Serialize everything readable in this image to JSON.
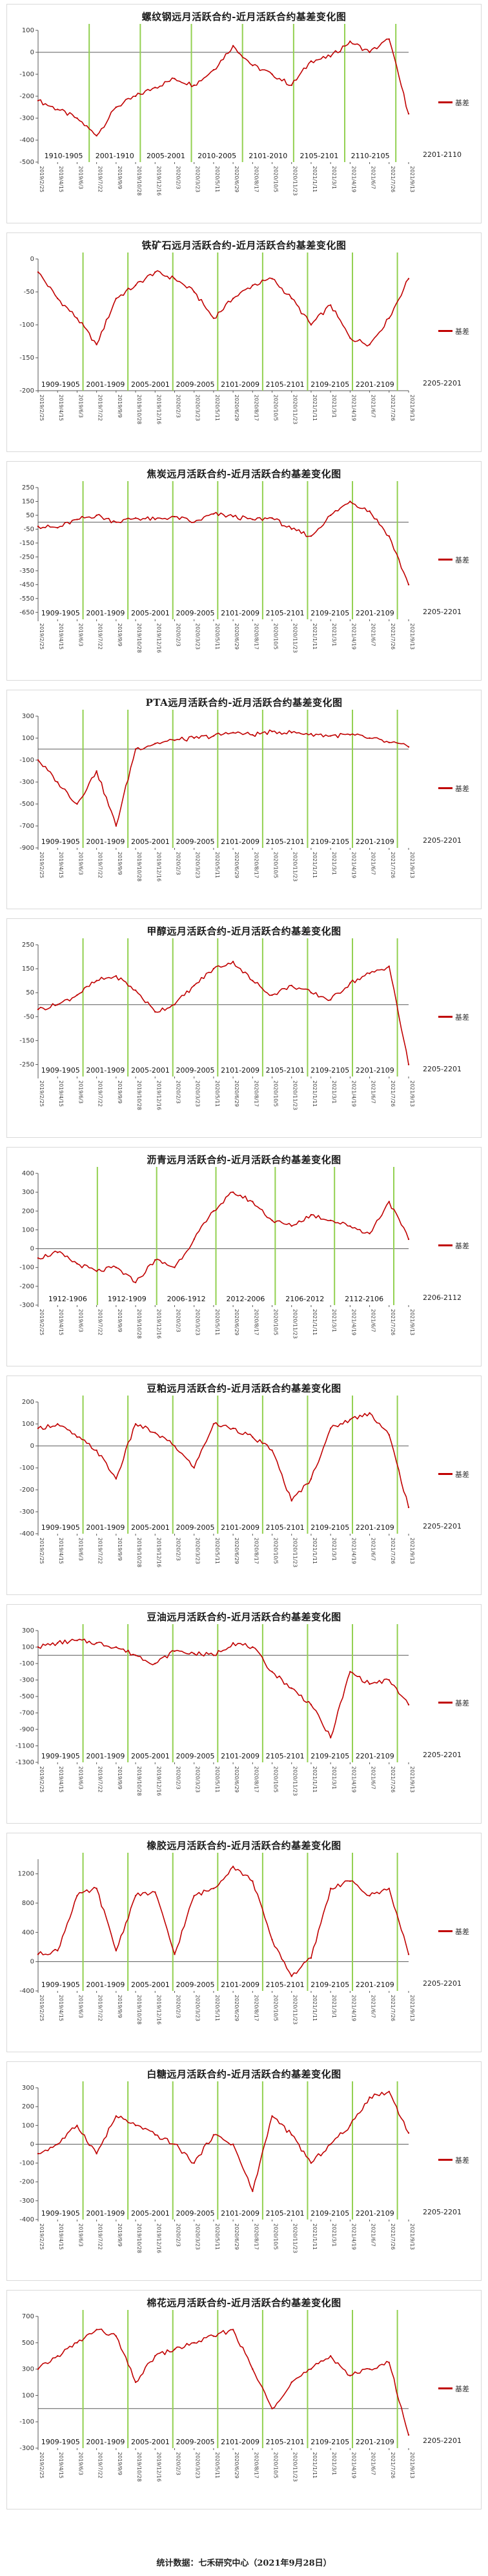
{
  "footer": "统计数据：七禾研究中心（2021年9月28日）",
  "colors": {
    "series": "#c00000",
    "marker": "#92d050",
    "axis": "#595959"
  },
  "chart_data": [
    {
      "type": "line",
      "title": "螺纹钢远月活跃合约-近月活跃合约基差变化图",
      "legend": "基差",
      "ylim": [
        -500,
        100
      ],
      "yticks": [
        100,
        0,
        -100,
        -200,
        -300,
        -400,
        -500
      ],
      "segments": [
        "1910-1905",
        "2001-1910",
        "2005-2001",
        "2010-2005",
        "2101-2010",
        "2105-2101",
        "2110-2105"
      ],
      "extra_label": "2201-2110",
      "x": [
        "2019/2/25",
        "2019/4/15",
        "2019/6/3",
        "2019/7/22",
        "2019/9/9",
        "2019/10/28",
        "2019/12/16",
        "2020/2/3",
        "2020/3/23",
        "2020/5/11",
        "2020/6/29",
        "2020/8/17",
        "2020/10/5",
        "2020/11/23",
        "2021/1/11",
        "2021/3/1",
        "2021/4/19",
        "2021/6/7",
        "2021/7/26",
        "2021/9/13"
      ],
      "values": [
        -220,
        -260,
        -300,
        -380,
        -250,
        -200,
        -160,
        -120,
        -150,
        -80,
        30,
        -60,
        -100,
        -150,
        -40,
        -20,
        50,
        0,
        60,
        -280
      ]
    },
    {
      "type": "line",
      "title": "铁矿石远月活跃合约-近月活跃合约基差变化图",
      "legend": "基差",
      "ylim": [
        -200,
        0
      ],
      "yticks": [
        0,
        -50,
        -100,
        -150,
        -200
      ],
      "segments": [
        "1909-1905",
        "2001-1909",
        "2005-2001",
        "2009-2005",
        "2101-2009",
        "2105-2101",
        "2109-2105",
        "2201-2109"
      ],
      "extra_label": "2205-2201",
      "x": [
        "2019/2/25",
        "2019/4/15",
        "2019/6/3",
        "2019/7/22",
        "2019/9/9",
        "2019/10/28",
        "2019/12/16",
        "2020/2/3",
        "2020/3/23",
        "2020/5/11",
        "2020/6/29",
        "2020/8/17",
        "2020/10/5",
        "2020/11/23",
        "2021/1/11",
        "2021/3/1",
        "2021/4/19",
        "2021/6/7",
        "2021/7/26",
        "2021/9/13"
      ],
      "values": [
        -20,
        -60,
        -90,
        -130,
        -60,
        -40,
        -20,
        -30,
        -50,
        -90,
        -60,
        -40,
        -30,
        -60,
        -100,
        -70,
        -120,
        -130,
        -90,
        -30
      ]
    },
    {
      "type": "line",
      "title": "焦炭远月活跃合约-近月活跃合约基差变化图",
      "legend": "基差",
      "ylim": [
        -700,
        250
      ],
      "yticks": [
        250,
        150,
        50,
        -50,
        -150,
        -250,
        -350,
        -450,
        -550,
        -650
      ],
      "segments": [
        "1909-1905",
        "2001-1909",
        "2005-2001",
        "2009-2005",
        "2101-2009",
        "2105-2101",
        "2109-2105",
        "2201-2109"
      ],
      "extra_label": "2205-2201",
      "x": [
        "2019/2/25",
        "2019/4/15",
        "2019/6/3",
        "2019/7/22",
        "2019/9/9",
        "2019/10/28",
        "2019/12/16",
        "2020/2/3",
        "2020/3/23",
        "2020/5/11",
        "2020/6/29",
        "2020/8/17",
        "2020/10/5",
        "2020/11/23",
        "2021/1/11",
        "2021/3/1",
        "2021/4/19",
        "2021/6/7",
        "2021/7/26",
        "2021/9/13"
      ],
      "values": [
        -30,
        -40,
        20,
        50,
        0,
        30,
        20,
        40,
        0,
        60,
        40,
        20,
        30,
        -50,
        -100,
        50,
        150,
        80,
        -100,
        -450
      ]
    },
    {
      "type": "line",
      "title": "PTA远月活跃合约-近月活跃合约基差变化图",
      "legend": "基差",
      "ylim": [
        -900,
        300
      ],
      "yticks": [
        300,
        100,
        -100,
        -300,
        -500,
        -700,
        -900
      ],
      "segments": [
        "1909-1905",
        "2001-1909",
        "2005-2001",
        "2009-2005",
        "2101-2009",
        "2105-2101",
        "2109-2105",
        "2201-2109"
      ],
      "extra_label": "2205-2201",
      "x": [
        "2019/2/25",
        "2019/4/15",
        "2019/6/3",
        "2019/7/22",
        "2019/9/9",
        "2019/10/28",
        "2019/12/16",
        "2020/2/3",
        "2020/3/23",
        "2020/5/11",
        "2020/6/29",
        "2020/8/17",
        "2020/10/5",
        "2020/11/23",
        "2021/1/11",
        "2021/3/1",
        "2021/4/19",
        "2021/6/7",
        "2021/7/26",
        "2021/9/13"
      ],
      "values": [
        -100,
        -300,
        -500,
        -200,
        -700,
        0,
        50,
        80,
        100,
        120,
        150,
        130,
        160,
        150,
        140,
        120,
        130,
        100,
        60,
        20
      ]
    },
    {
      "type": "line",
      "title": "甲醇远月活跃合约-近月活跃合约基差变化图",
      "legend": "基差",
      "ylim": [
        -300,
        250
      ],
      "yticks": [
        250,
        150,
        50,
        -50,
        -150,
        -250
      ],
      "segments": [
        "1909-1905",
        "2001-1909",
        "2005-2001",
        "2009-2005",
        "2101-2009",
        "2105-2101",
        "2109-2105",
        "2201-2109"
      ],
      "extra_label": "2205-2201",
      "x": [
        "2019/2/25",
        "2019/4/15",
        "2019/6/3",
        "2019/7/22",
        "2019/9/9",
        "2019/10/28",
        "2019/12/16",
        "2020/2/3",
        "2020/3/23",
        "2020/5/11",
        "2020/6/29",
        "2020/8/17",
        "2020/10/5",
        "2020/11/23",
        "2021/1/11",
        "2021/3/1",
        "2021/4/19",
        "2021/6/7",
        "2021/7/26",
        "2021/9/13"
      ],
      "values": [
        -20,
        0,
        40,
        100,
        120,
        60,
        -30,
        0,
        80,
        150,
        180,
        100,
        40,
        80,
        50,
        20,
        90,
        130,
        160,
        -250
      ]
    },
    {
      "type": "line",
      "title": "沥青远月活跃合约-近月活跃合约基差变化图",
      "legend": "基差",
      "ylim": [
        -300,
        400
      ],
      "yticks": [
        400,
        300,
        200,
        100,
        0,
        -100,
        -200,
        -300
      ],
      "segments": [
        "1912-1906",
        "1912-1909",
        "2006-1912",
        "2012-2006",
        "2106-2012",
        "2112-2106"
      ],
      "extra_label": "2206-2112",
      "x": [
        "2019/2/25",
        "2019/4/15",
        "2019/6/3",
        "2019/7/22",
        "2019/9/9",
        "2019/10/28",
        "2019/12/16",
        "2020/2/3",
        "2020/3/23",
        "2020/5/11",
        "2020/6/29",
        "2020/8/17",
        "2020/10/5",
        "2020/11/23",
        "2021/1/11",
        "2021/3/1",
        "2021/4/19",
        "2021/6/7",
        "2021/7/26",
        "2021/9/13"
      ],
      "values": [
        -50,
        -20,
        -80,
        -120,
        -100,
        -180,
        -60,
        -100,
        50,
        200,
        300,
        250,
        150,
        120,
        180,
        150,
        120,
        80,
        250,
        50
      ]
    },
    {
      "type": "line",
      "title": "豆粕远月活跃合约-近月活跃合约基差变化图",
      "legend": "基差",
      "ylim": [
        -400,
        200
      ],
      "yticks": [
        200,
        100,
        0,
        -100,
        -200,
        -300,
        -400
      ],
      "segments": [
        "1909-1905",
        "2001-1909",
        "2005-2001",
        "2009-2005",
        "2101-2009",
        "2105-2101",
        "2109-2105",
        "2201-2109"
      ],
      "extra_label": "2205-2201",
      "x": [
        "2019/2/25",
        "2019/4/15",
        "2019/6/3",
        "2019/7/22",
        "2019/9/9",
        "2019/10/28",
        "2019/12/16",
        "2020/2/3",
        "2020/3/23",
        "2020/5/11",
        "2020/6/29",
        "2020/8/17",
        "2020/10/5",
        "2020/11/23",
        "2021/1/11",
        "2021/3/1",
        "2021/4/19",
        "2021/6/7",
        "2021/7/26",
        "2021/9/13"
      ],
      "values": [
        80,
        100,
        40,
        -20,
        -150,
        100,
        60,
        0,
        -100,
        100,
        80,
        40,
        -20,
        -250,
        -150,
        80,
        120,
        150,
        50,
        -280
      ]
    },
    {
      "type": "line",
      "title": "豆油远月活跃合约-近月活跃合约基差变化图",
      "legend": "基差",
      "ylim": [
        -1300,
        300
      ],
      "yticks": [
        300,
        100,
        -100,
        -300,
        -500,
        -700,
        -900,
        -1100,
        -1300
      ],
      "segments": [
        "1909-1905",
        "2001-1909",
        "2005-2001",
        "2009-2005",
        "2101-2009",
        "2105-2101",
        "2109-2105",
        "2201-2109"
      ],
      "extra_label": "2205-2201",
      "x": [
        "2019/2/25",
        "2019/4/15",
        "2019/6/3",
        "2019/7/22",
        "2019/9/9",
        "2019/10/28",
        "2019/12/16",
        "2020/2/3",
        "2020/3/23",
        "2020/5/11",
        "2020/6/29",
        "2020/8/17",
        "2020/10/5",
        "2020/11/23",
        "2021/1/11",
        "2021/3/1",
        "2021/4/19",
        "2021/6/7",
        "2021/7/26",
        "2021/9/13"
      ],
      "values": [
        100,
        150,
        180,
        150,
        100,
        0,
        -100,
        50,
        20,
        0,
        150,
        100,
        -200,
        -400,
        -600,
        -1000,
        -200,
        -350,
        -300,
        -600
      ]
    },
    {
      "type": "line",
      "title": "橡胶远月活跃合约-近月活跃合约基差变化图",
      "legend": "基差",
      "ylim": [
        -400,
        1400
      ],
      "yticks": [
        1200,
        800,
        400,
        0,
        -400
      ],
      "segments": [
        "1909-1905",
        "2001-1909",
        "2005-2001",
        "2009-2005",
        "2101-2009",
        "2105-2101",
        "2109-2105",
        "2201-2109"
      ],
      "extra_label": "2205-2201",
      "x": [
        "2019/2/25",
        "2019/4/15",
        "2019/6/3",
        "2019/7/22",
        "2019/9/9",
        "2019/10/28",
        "2019/12/16",
        "2020/2/3",
        "2020/3/23",
        "2020/5/11",
        "2020/6/29",
        "2020/8/17",
        "2020/10/5",
        "2020/11/23",
        "2021/1/11",
        "2021/3/1",
        "2021/4/19",
        "2021/6/7",
        "2021/7/26",
        "2021/9/13"
      ],
      "values": [
        100,
        150,
        900,
        1000,
        150,
        900,
        950,
        100,
        900,
        1000,
        1300,
        1100,
        300,
        -200,
        50,
        1000,
        1100,
        900,
        1000,
        100
      ]
    },
    {
      "type": "line",
      "title": "白糖远月活跃合约-近月活跃合约基差变化图",
      "legend": "基差",
      "ylim": [
        -400,
        300
      ],
      "yticks": [
        300,
        200,
        100,
        0,
        -100,
        -200,
        -300,
        -400
      ],
      "segments": [
        "1909-1905",
        "2001-1909",
        "2005-2001",
        "2009-2005",
        "2101-2009",
        "2105-2101",
        "2109-2105",
        "2201-2109"
      ],
      "extra_label": "2205-2201",
      "x": [
        "2019/2/25",
        "2019/4/15",
        "2019/6/3",
        "2019/7/22",
        "2019/9/9",
        "2019/10/28",
        "2019/12/16",
        "2020/2/3",
        "2020/3/23",
        "2020/5/11",
        "2020/6/29",
        "2020/8/17",
        "2020/10/5",
        "2020/11/23",
        "2021/1/11",
        "2021/3/1",
        "2021/4/19",
        "2021/6/7",
        "2021/7/26",
        "2021/9/13"
      ],
      "values": [
        -50,
        0,
        100,
        -50,
        150,
        100,
        50,
        0,
        -100,
        50,
        0,
        -250,
        150,
        50,
        -100,
        0,
        100,
        250,
        280,
        60
      ]
    },
    {
      "type": "line",
      "title": "棉花远月活跃合约-近月活跃合约基差变化图",
      "legend": "基差",
      "ylim": [
        -300,
        700
      ],
      "yticks": [
        700,
        500,
        300,
        100,
        -100,
        -300
      ],
      "segments": [
        "1909-1905",
        "2001-1909",
        "2005-2001",
        "2009-2005",
        "2101-2009",
        "2105-2101",
        "2109-2105",
        "2201-2109"
      ],
      "extra_label": "2205-2201",
      "x": [
        "2019/2/25",
        "2019/4/15",
        "2019/6/3",
        "2019/7/22",
        "2019/9/9",
        "2019/10/28",
        "2019/12/16",
        "2020/2/3",
        "2020/3/23",
        "2020/5/11",
        "2020/6/29",
        "2020/8/17",
        "2020/10/5",
        "2020/11/23",
        "2021/1/11",
        "2021/3/1",
        "2021/4/19",
        "2021/6/7",
        "2021/7/26",
        "2021/9/13"
      ],
      "values": [
        300,
        400,
        500,
        600,
        550,
        200,
        400,
        450,
        500,
        550,
        600,
        300,
        0,
        200,
        300,
        400,
        250,
        300,
        350,
        -200
      ]
    }
  ]
}
